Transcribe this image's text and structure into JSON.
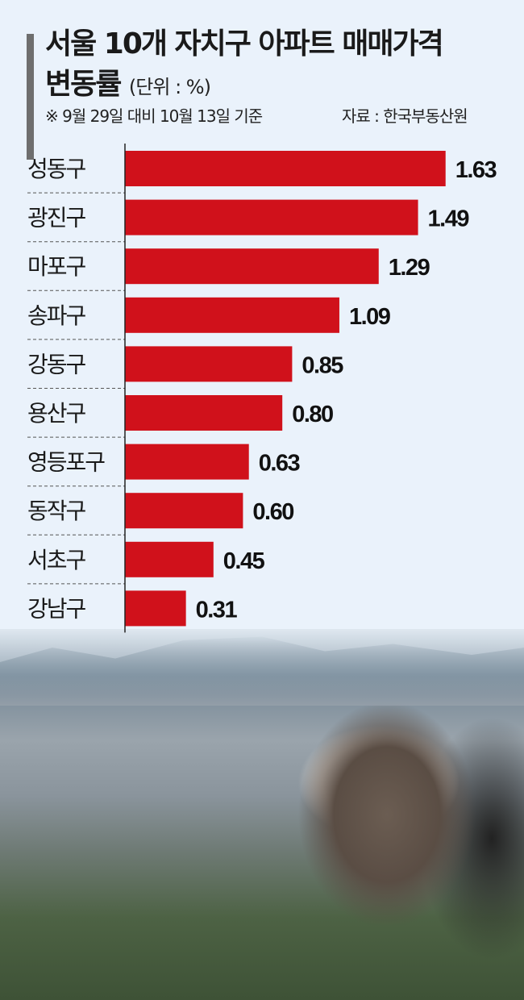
{
  "header": {
    "title_line1": "서울 10개 자치구 아파트 매매가격",
    "title_line2": "변동률",
    "unit": "(단위 : %)",
    "note": "※ 9월 29일 대비 10월 13일 기준",
    "source": "자료 : 한국부동산원"
  },
  "colors": {
    "bar": "#d0111b",
    "background": "#eaf2fb",
    "text": "#1a1a1a"
  },
  "chart_data": {
    "type": "bar",
    "orientation": "horizontal",
    "title": "서울 10개 자치구 아파트 매매가격 변동률",
    "unit": "%",
    "categories": [
      "성동구",
      "광진구",
      "마포구",
      "송파구",
      "강동구",
      "용산구",
      "영등포구",
      "동작구",
      "서초구",
      "강남구"
    ],
    "values": [
      1.63,
      1.49,
      1.29,
      1.09,
      0.85,
      0.8,
      0.63,
      0.6,
      0.45,
      0.31
    ],
    "labels": [
      "1.63",
      "1.49",
      "1.29",
      "1.09",
      "0.85",
      "0.80",
      "0.63",
      "0.60",
      "0.45",
      "0.31"
    ],
    "xlim": [
      0,
      1.7
    ],
    "grid": false,
    "data_labels": true
  }
}
